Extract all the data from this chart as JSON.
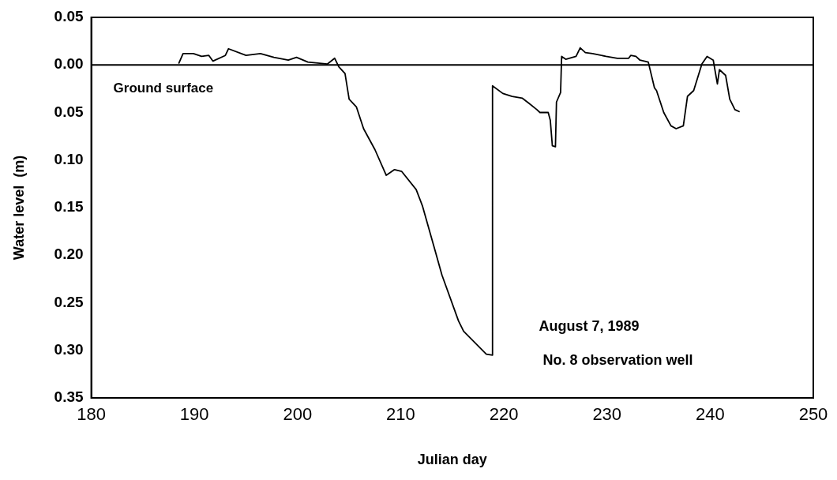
{
  "chart_data": {
    "type": "line",
    "xlabel": "Julian day",
    "ylabel": "Water level  (m)",
    "xlim": [
      180,
      250
    ],
    "xticks": [
      180,
      190,
      200,
      210,
      220,
      230,
      240,
      250
    ],
    "ylim": [
      0.35,
      -0.05
    ],
    "yticks": [
      {
        "value": -0.05,
        "label": "0.05"
      },
      {
        "value": 0,
        "label": "0.00"
      },
      {
        "value": 0.05,
        "label": "0.05"
      },
      {
        "value": 0.1,
        "label": "0.10"
      },
      {
        "value": 0.15,
        "label": "0.15"
      },
      {
        "value": 0.2,
        "label": "0.20"
      },
      {
        "value": 0.25,
        "label": "0.25"
      },
      {
        "value": 0.3,
        "label": "0.30"
      },
      {
        "value": 0.35,
        "label": "0.35"
      }
    ],
    "grid": false,
    "legend": false,
    "marker": "none",
    "line_style": "solid",
    "ref_lines": [
      {
        "axis": "y",
        "value": 0,
        "label": "Ground surface",
        "color": "#000000"
      }
    ],
    "annotations": [
      "August 7, 1989",
      "No. 8 observation well"
    ],
    "series": [
      {
        "color": "#000000",
        "x": [
          188.5,
          188.9,
          189.9,
          190.7,
          191.4,
          191.8,
          193.0,
          193.3,
          195.0,
          196.4,
          197.7,
          199.1,
          199.9,
          201.0,
          202.9,
          203.6,
          204.0,
          204.6,
          205.0,
          205.7,
          206.4,
          207.5,
          208.6,
          209.4,
          210.1,
          211.5,
          212.1,
          213.2,
          214.0,
          215.6,
          216.1,
          218.3,
          218.9,
          218.9,
          219.9,
          220.8,
          221.8,
          222.4,
          223.2,
          223.5,
          224.3,
          224.5,
          224.7,
          225.0,
          225.1,
          225.5,
          225.6,
          226.0,
          227.0,
          227.4,
          227.9,
          228.6,
          229.9,
          231.0,
          232.1,
          232.3,
          232.8,
          233.2,
          234.0,
          234.6,
          234.8,
          235.5,
          236.2,
          236.7,
          237.4,
          237.8,
          238.4,
          239.2,
          239.7,
          240.3,
          240.7,
          240.9,
          241.5,
          241.9,
          242.4,
          242.8
        ],
        "values": [
          -0.002,
          -0.012,
          -0.012,
          -0.009,
          -0.01,
          -0.004,
          -0.01,
          -0.017,
          -0.01,
          -0.012,
          -0.008,
          -0.005,
          -0.008,
          -0.003,
          -0.001,
          -0.007,
          0.002,
          0.009,
          0.036,
          0.044,
          0.067,
          0.089,
          0.116,
          0.11,
          0.112,
          0.131,
          0.148,
          0.19,
          0.221,
          0.269,
          0.28,
          0.304,
          0.305,
          0.022,
          0.03,
          0.033,
          0.035,
          0.04,
          0.047,
          0.05,
          0.05,
          0.058,
          0.085,
          0.086,
          0.039,
          0.029,
          -0.009,
          -0.006,
          -0.009,
          -0.018,
          -0.013,
          -0.012,
          -0.009,
          -0.007,
          -0.007,
          -0.01,
          -0.009,
          -0.005,
          -0.003,
          0.024,
          0.027,
          0.05,
          0.064,
          0.067,
          0.064,
          0.033,
          0.027,
          -0.001,
          -0.009,
          -0.005,
          0.02,
          0.005,
          0.011,
          0.036,
          0.047,
          0.049
        ]
      }
    ]
  }
}
